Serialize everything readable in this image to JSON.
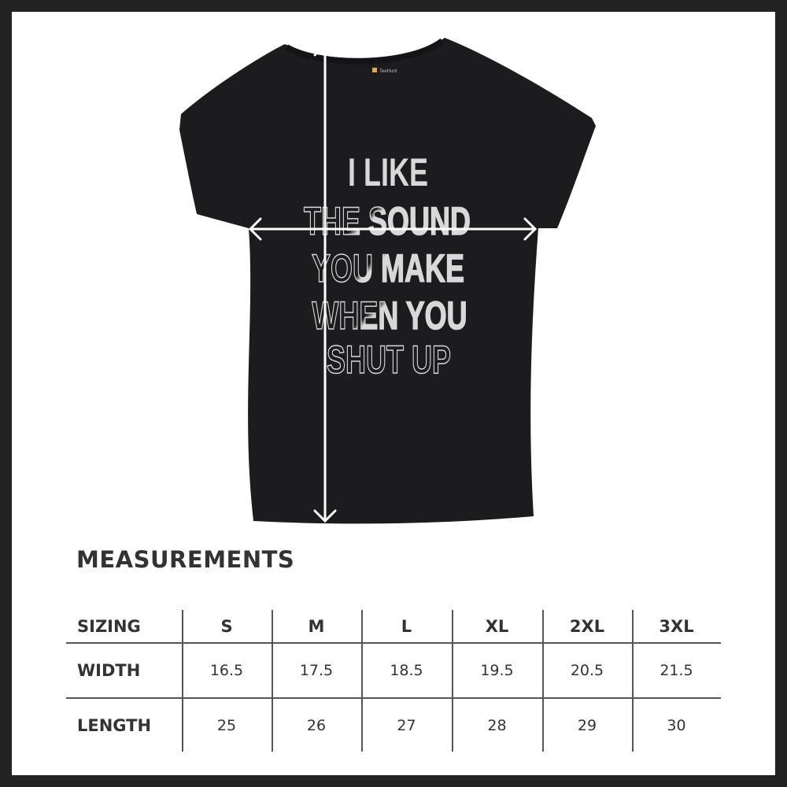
{
  "shirt": {
    "color": "#1c1c1e",
    "tag_brand": "TeeHunt",
    "print_lines": [
      "I LIKE",
      "THE SOUND",
      "YOU MAKE",
      "WHEN YOU",
      "SHUT UP"
    ],
    "measure_arrows": [
      "vertical-length-arrow",
      "horizontal-width-arrow"
    ]
  },
  "measurements": {
    "title": "MEASUREMENTS",
    "header": [
      "SIZING",
      "S",
      "M",
      "L",
      "XL",
      "2XL",
      "3XL"
    ],
    "rows": [
      [
        "WIDTH",
        "16.5",
        "17.5",
        "18.5",
        "19.5",
        "20.5",
        "21.5"
      ],
      [
        "LENGTH",
        "25",
        "26",
        "27",
        "28",
        "29",
        "30"
      ]
    ]
  },
  "colors": {
    "frame": "#222222",
    "text": "#333333",
    "background": "#ffffff"
  }
}
